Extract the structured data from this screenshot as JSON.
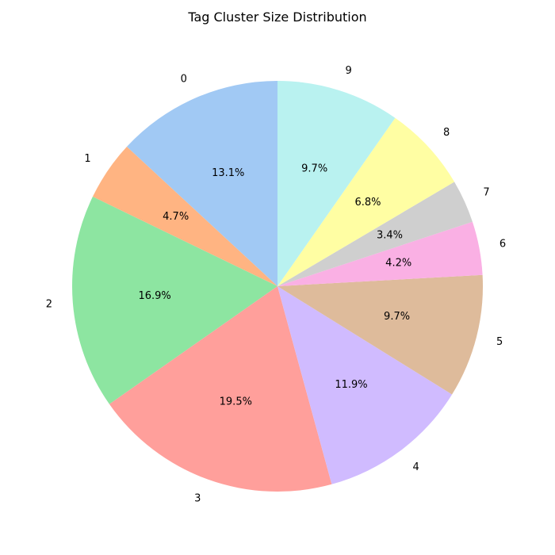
{
  "chart_data": {
    "type": "pie",
    "title": "Tag Cluster Size Distribution",
    "categories": [
      "0",
      "1",
      "2",
      "3",
      "4",
      "5",
      "6",
      "7",
      "8",
      "9"
    ],
    "values": [
      13.1,
      4.7,
      16.9,
      19.5,
      11.9,
      9.7,
      4.2,
      3.4,
      6.8,
      9.7
    ],
    "percent_labels": [
      "13.1%",
      "4.7%",
      "16.9%",
      "19.5%",
      "11.9%",
      "9.7%",
      "4.2%",
      "3.4%",
      "6.8%",
      "9.7%"
    ],
    "colors": [
      "#a1c9f4",
      "#ffb482",
      "#8de5a1",
      "#ff9f9b",
      "#d0bbff",
      "#debb9b",
      "#fab0e4",
      "#cfcfcf",
      "#fffea3",
      "#b9f2f0"
    ],
    "start_angle_deg": 90,
    "direction": "counterclockwise",
    "legend": "none"
  }
}
